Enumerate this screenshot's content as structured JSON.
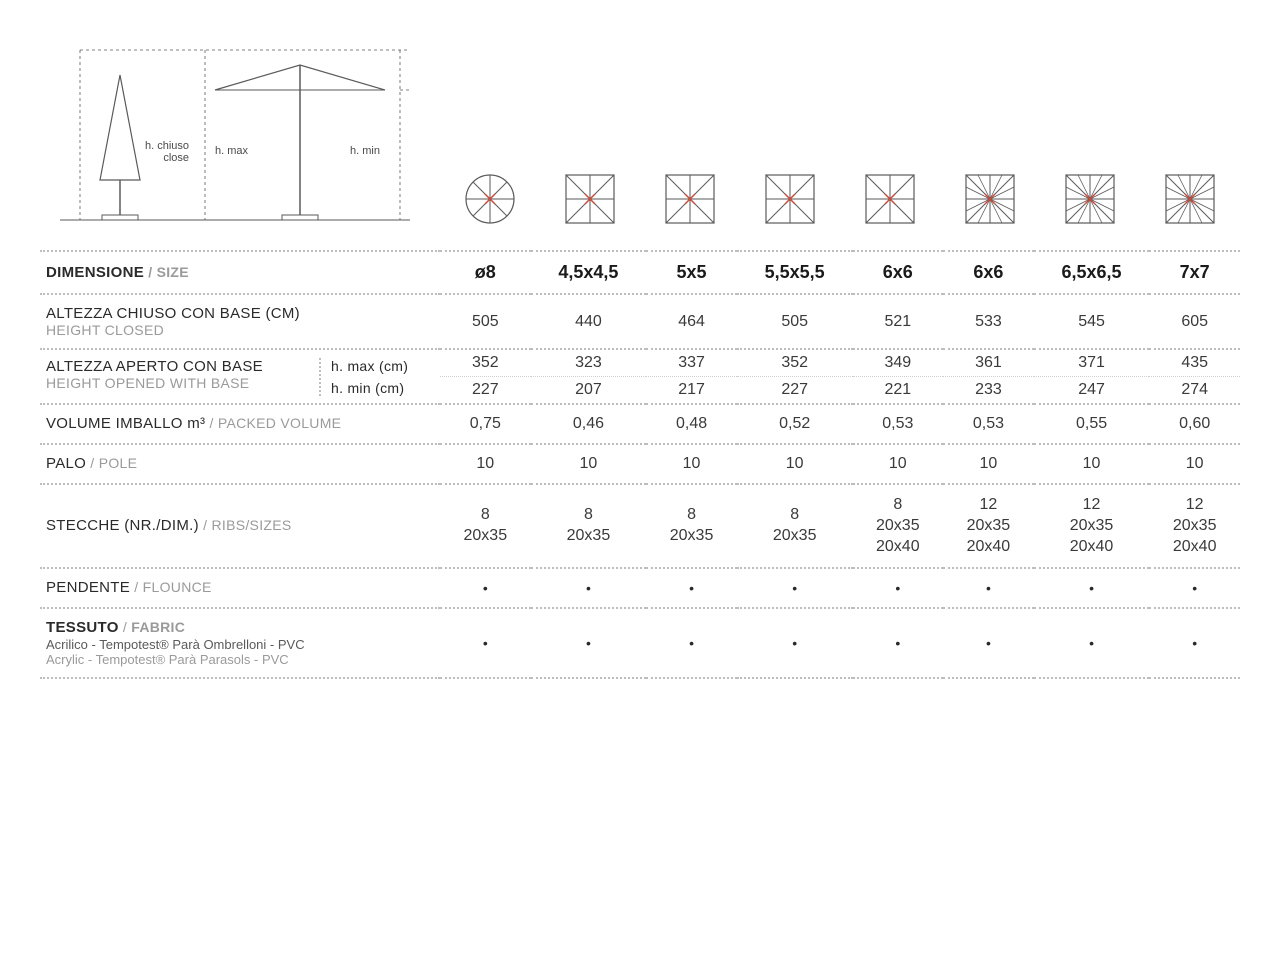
{
  "diagram": {
    "h_chiuso_it": "h. chiuso",
    "h_chiuso_en": "close",
    "h_max": "h. max",
    "h_min": "h. min",
    "stroke": "#5a5a5a",
    "accent": "#d14a3a"
  },
  "icons": {
    "types": [
      "round8",
      "square8",
      "square8",
      "square8",
      "square8",
      "square12",
      "square12",
      "square12"
    ],
    "stroke": "#5a5a5a",
    "accent": "#d14a3a"
  },
  "header": {
    "label_it": "DIMENSIONE",
    "sep": "  /  ",
    "label_en": "SIZE",
    "sizes": [
      "ø8",
      "4,5x4,5",
      "5x5",
      "5,5x5,5",
      "6x6",
      "6x6",
      "6,5x6,5",
      "7x7"
    ]
  },
  "rows": {
    "height_closed": {
      "it": "ALTEZZA CHIUSO CON BASE (CM)",
      "en": "HEIGHT CLOSED",
      "vals": [
        "505",
        "440",
        "464",
        "505",
        "521",
        "533",
        "545",
        "605"
      ]
    },
    "height_opened": {
      "it": "ALTEZZA APERTO CON BASE",
      "en": "HEIGHT OPENED WITH BASE",
      "sub_max": "h. max (cm)",
      "sub_min": "h. min (cm)",
      "vals_max": [
        "352",
        "323",
        "337",
        "352",
        "349",
        "361",
        "371",
        "435"
      ],
      "vals_min": [
        "227",
        "207",
        "217",
        "227",
        "221",
        "233",
        "247",
        "274"
      ]
    },
    "volume": {
      "it": "VOLUME IMBALLO m³",
      "sep": " / ",
      "en": "PACKED VOLUME",
      "vals": [
        "0,75",
        "0,46",
        "0,48",
        "0,52",
        "0,53",
        "0,53",
        "0,55",
        "0,60"
      ]
    },
    "pole": {
      "it": "PALO",
      "sep": "  /  ",
      "en": "POLE",
      "vals": [
        "10",
        "10",
        "10",
        "10",
        "10",
        "10",
        "10",
        "10"
      ]
    },
    "ribs": {
      "it": "STECCHE (NR./DIM.)",
      "sep": "  /  ",
      "en": "RIBS/SIZES",
      "vals": [
        [
          "8",
          "20x35"
        ],
        [
          "8",
          "20x35"
        ],
        [
          "8",
          "20x35"
        ],
        [
          "8",
          "20x35"
        ],
        [
          "8",
          "20x35",
          "20x40"
        ],
        [
          "12",
          "20x35",
          "20x40"
        ],
        [
          "12",
          "20x35",
          "20x40"
        ],
        [
          "12",
          "20x35",
          "20x40"
        ]
      ]
    },
    "flounce": {
      "it": "PENDENTE",
      "sep": "  /  ",
      "en": "FLOUNCE",
      "vals": [
        "•",
        "•",
        "•",
        "•",
        "•",
        "•",
        "•",
        "•"
      ]
    },
    "fabric": {
      "it": "TESSUTO",
      "sep": "  /  ",
      "en": "FABRIC",
      "sub_it": "Acrilico - Tempotest® Parà Ombrelloni - PVC",
      "sub_en": "Acrylic - Tempotest® Parà Parasols - PVC",
      "vals": [
        "•",
        "•",
        "•",
        "•",
        "•",
        "•",
        "•",
        "•"
      ]
    }
  }
}
